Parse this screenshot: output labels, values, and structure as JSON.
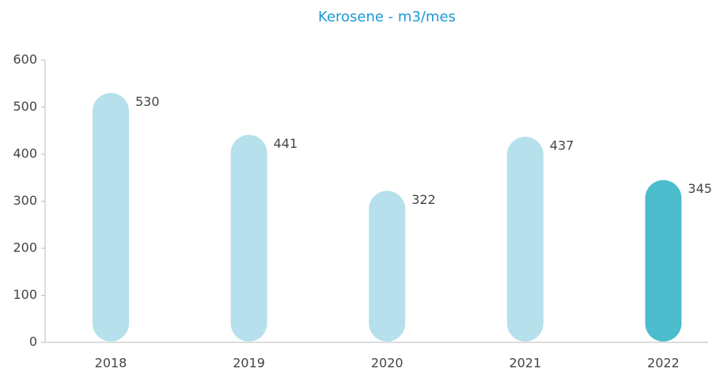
{
  "chart_data": {
    "type": "bar",
    "title": "Kerosene - m3/mes",
    "categories": [
      "2018",
      "2019",
      "2020",
      "2021",
      "2022"
    ],
    "values": [
      530,
      441,
      322,
      437,
      345
    ],
    "colors": [
      "#b5e0ec",
      "#b5e0ec",
      "#b5e0ec",
      "#b5e0ec",
      "#4bbdcc"
    ],
    "ylim": [
      0,
      600
    ],
    "yticks": [
      0,
      100,
      200,
      300,
      400,
      500,
      600
    ],
    "grid": false
  }
}
